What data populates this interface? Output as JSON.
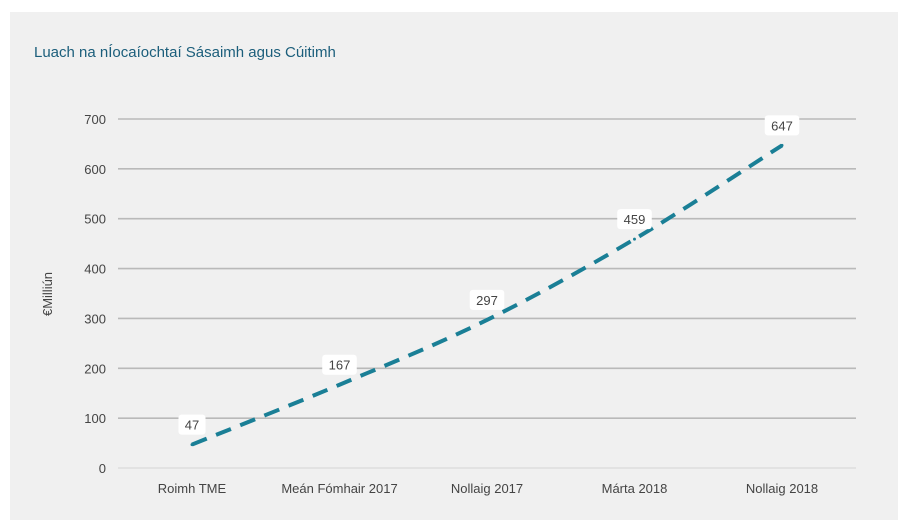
{
  "chart_data": {
    "type": "line",
    "title": "Luach na nÍocaíochtaí Sásaimh agus Cúitimh",
    "xlabel": "",
    "ylabel": "€Milliún",
    "categories": [
      "Roimh TME",
      "Meán Fómhair 2017",
      "Nollaig 2017",
      "Márta 2018",
      "Nollaig 2018"
    ],
    "series": [
      {
        "values": [
          47,
          167,
          297,
          459,
          647
        ],
        "color": "#1a7f96",
        "style": "dashed"
      }
    ],
    "ylim": [
      0,
      700
    ],
    "yticks": [
      0,
      100,
      200,
      300,
      400,
      500,
      600,
      700
    ],
    "grid": true,
    "data_labels": true
  }
}
